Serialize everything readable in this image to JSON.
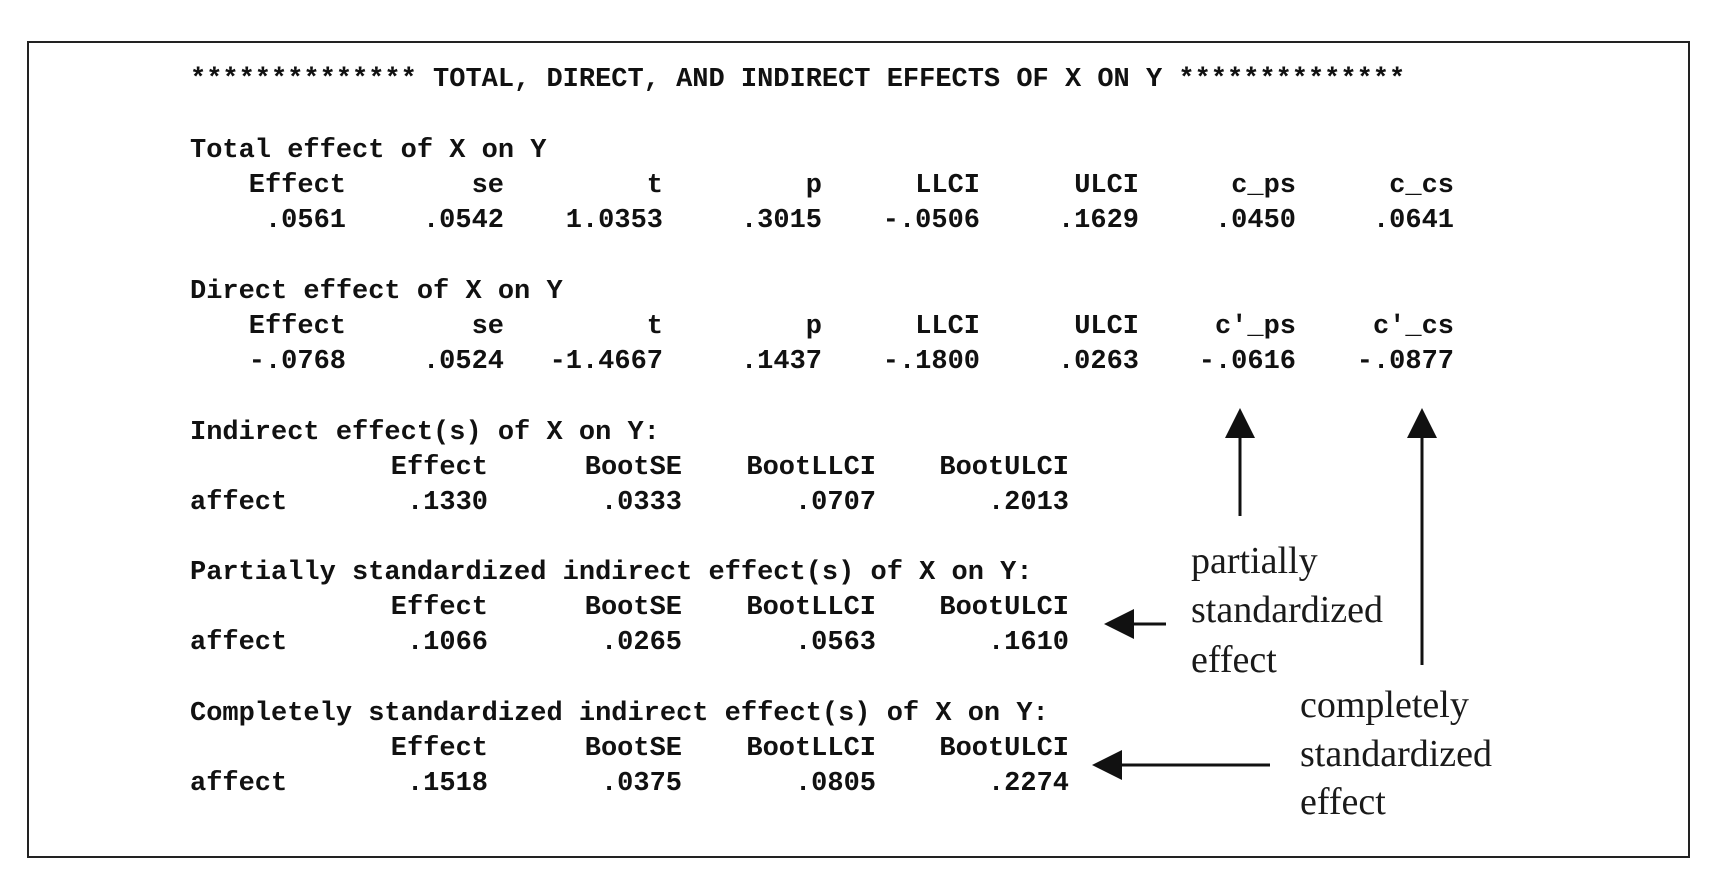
{
  "header": "************** TOTAL, DIRECT, AND INDIRECT EFFECTS OF X ON Y **************",
  "total_effect": {
    "title": "Total effect of X on Y",
    "headers": [
      "Effect",
      "se",
      "t",
      "p",
      "LLCI",
      "ULCI",
      "c_ps",
      "c_cs"
    ],
    "values": [
      ".0561",
      ".0542",
      "1.0353",
      ".3015",
      "-.0506",
      ".1629",
      ".0450",
      ".0641"
    ]
  },
  "direct_effect": {
    "title": "Direct effect of X on Y",
    "headers": [
      "Effect",
      "se",
      "t",
      "p",
      "LLCI",
      "ULCI",
      "c'_ps",
      "c'_cs"
    ],
    "values": [
      "-.0768",
      ".0524",
      "-1.4667",
      ".1437",
      "-.1800",
      ".0263",
      "-.0616",
      "-.0877"
    ]
  },
  "indirect_effect": {
    "title": "Indirect effect(s) of X on Y:",
    "headers": [
      "Effect",
      "BootSE",
      "BootLLCI",
      "BootULCI"
    ],
    "row_label": "affect",
    "values": [
      ".1330",
      ".0333",
      ".0707",
      ".2013"
    ]
  },
  "partially_standardized": {
    "title": "Partially standardized indirect effect(s) of X on Y:",
    "headers": [
      "Effect",
      "BootSE",
      "BootLLCI",
      "BootULCI"
    ],
    "row_label": "affect",
    "values": [
      ".1066",
      ".0265",
      ".0563",
      ".1610"
    ]
  },
  "completely_standardized": {
    "title": "Completely standardized indirect effect(s) of X on Y:",
    "headers": [
      "Effect",
      "BootSE",
      "BootLLCI",
      "BootULCI"
    ],
    "row_label": "affect",
    "values": [
      ".1518",
      ".0375",
      ".0805",
      ".2274"
    ]
  },
  "annotations": {
    "partially": [
      "partially",
      "standardized",
      "effect"
    ],
    "completely": [
      "completely",
      "standardized",
      "effect"
    ]
  }
}
